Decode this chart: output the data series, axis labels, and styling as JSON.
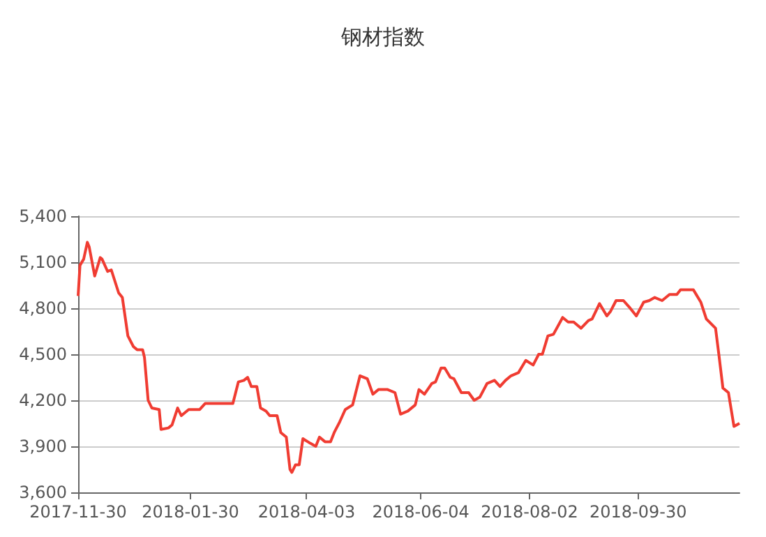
{
  "chart_data": {
    "type": "line",
    "title": "钢材指数",
    "x": [
      "2017-11-30",
      "2017-12-01",
      "2017-12-03",
      "2017-12-05",
      "2017-12-06",
      "2017-12-09",
      "2017-12-12",
      "2017-12-13",
      "2017-12-16",
      "2017-12-18",
      "2017-12-22",
      "2017-12-24",
      "2017-12-27",
      "2017-12-30",
      "2018-01-01",
      "2018-01-04",
      "2018-01-05",
      "2018-01-07",
      "2018-01-09",
      "2018-01-13",
      "2018-01-14",
      "2018-01-18",
      "2018-01-20",
      "2018-01-23",
      "2018-01-25",
      "2018-01-29",
      "2018-02-04",
      "2018-02-07",
      "2018-02-22",
      "2018-02-25",
      "2018-02-28",
      "2018-03-02",
      "2018-03-04",
      "2018-03-07",
      "2018-03-09",
      "2018-03-12",
      "2018-03-14",
      "2018-03-18",
      "2018-03-20",
      "2018-03-23",
      "2018-03-25",
      "2018-03-26",
      "2018-03-28",
      "2018-03-30",
      "2018-04-01",
      "2018-04-05",
      "2018-04-08",
      "2018-04-10",
      "2018-04-13",
      "2018-04-16",
      "2018-04-18",
      "2018-04-21",
      "2018-04-24",
      "2018-04-28",
      "2018-05-02",
      "2018-05-06",
      "2018-05-09",
      "2018-05-12",
      "2018-05-17",
      "2018-05-21",
      "2018-05-24",
      "2018-05-28",
      "2018-06-01",
      "2018-06-03",
      "2018-06-06",
      "2018-06-10",
      "2018-06-12",
      "2018-06-15",
      "2018-06-17",
      "2018-06-20",
      "2018-06-22",
      "2018-06-26",
      "2018-06-30",
      "2018-07-03",
      "2018-07-06",
      "2018-07-10",
      "2018-07-14",
      "2018-07-17",
      "2018-07-20",
      "2018-07-23",
      "2018-07-27",
      "2018-07-31",
      "2018-08-04",
      "2018-08-07",
      "2018-08-09",
      "2018-08-12",
      "2018-08-15",
      "2018-08-20",
      "2018-08-23",
      "2018-08-26",
      "2018-08-28",
      "2018-08-30",
      "2018-09-03",
      "2018-09-05",
      "2018-09-09",
      "2018-09-13",
      "2018-09-15",
      "2018-09-18",
      "2018-09-22",
      "2018-09-25",
      "2018-09-29",
      "2018-10-03",
      "2018-10-06",
      "2018-10-09",
      "2018-10-13",
      "2018-10-17",
      "2018-10-21",
      "2018-10-23",
      "2018-10-30",
      "2018-11-03",
      "2018-11-06",
      "2018-11-11",
      "2018-11-13",
      "2018-11-15",
      "2018-11-18",
      "2018-11-21",
      "2018-11-24"
    ],
    "series": [
      {
        "color": "#f03c32",
        "values": [
          4880,
          5080,
          5120,
          5230,
          5200,
          5010,
          5130,
          5120,
          5040,
          5050,
          4900,
          4870,
          4620,
          4550,
          4530,
          4530,
          4480,
          4200,
          4150,
          4140,
          4010,
          4020,
          4040,
          4150,
          4100,
          4140,
          4140,
          4180,
          4180,
          4320,
          4330,
          4350,
          4290,
          4290,
          4150,
          4130,
          4100,
          4100,
          3990,
          3960,
          3750,
          3730,
          3780,
          3780,
          3950,
          3920,
          3900,
          3960,
          3930,
          3930,
          3990,
          4060,
          4140,
          4170,
          4360,
          4340,
          4240,
          4270,
          4270,
          4250,
          4110,
          4130,
          4170,
          4270,
          4240,
          4310,
          4320,
          4410,
          4410,
          4350,
          4340,
          4250,
          4250,
          4200,
          4220,
          4310,
          4330,
          4290,
          4330,
          4360,
          4380,
          4460,
          4430,
          4500,
          4500,
          4620,
          4630,
          4740,
          4710,
          4710,
          4690,
          4670,
          4720,
          4730,
          4830,
          4750,
          4780,
          4850,
          4850,
          4810,
          4750,
          4840,
          4850,
          4870,
          4850,
          4890,
          4890,
          4920,
          4920,
          4840,
          4730,
          4670,
          4480,
          4280,
          4250,
          4030,
          4050
        ]
      }
    ],
    "xlim": [
      "2017-11-30",
      "2018-11-24"
    ],
    "xticks": [
      "2017-11-30",
      "2018-01-30",
      "2018-04-03",
      "2018-06-04",
      "2018-08-02",
      "2018-09-30"
    ],
    "ylim": [
      3600,
      5400
    ],
    "yticks": [
      {
        "value": 3600,
        "label": "3,600"
      },
      {
        "value": 3900,
        "label": "3,900"
      },
      {
        "value": 4200,
        "label": "4,200"
      },
      {
        "value": 4500,
        "label": "4,500"
      },
      {
        "value": 4800,
        "label": "4,800"
      },
      {
        "value": 5100,
        "label": "5,100"
      },
      {
        "value": 5400,
        "label": "5,400"
      }
    ],
    "grid": "y"
  }
}
